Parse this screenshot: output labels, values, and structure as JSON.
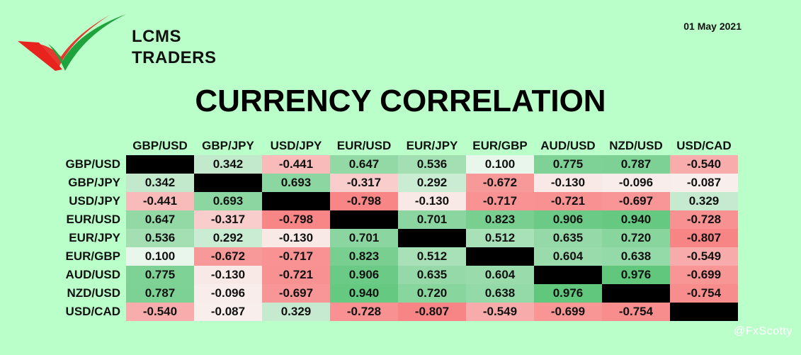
{
  "brand": {
    "line1": "LCMS",
    "line2": "TRADERS"
  },
  "date": "01 May 2021",
  "colors": {
    "background": "#baffc9",
    "positive": "#5cc67a",
    "negative": "#ff6b6b",
    "diagonal": "#000000"
  },
  "icons": [
    "lcms-swoosh-logo-icon"
  ],
  "watermark": {
    "symbol": "@",
    "handle": "FxScotty"
  },
  "chart_data": {
    "type": "heatmap",
    "title": "CURRENCY CORRELATION",
    "columns": [
      "GBP/USD",
      "GBP/JPY",
      "USD/JPY",
      "EUR/USD",
      "EUR/JPY",
      "EUR/GBP",
      "AUD/USD",
      "NZD/USD",
      "USD/CAD"
    ],
    "rows": [
      "GBP/USD",
      "GBP/JPY",
      "USD/JPY",
      "EUR/USD",
      "EUR/JPY",
      "EUR/GBP",
      "AUD/USD",
      "NZD/USD",
      "USD/CAD"
    ],
    "values": [
      [
        null,
        "0.342",
        "-0.441",
        "0.647",
        "0.536",
        "0.100",
        "0.775",
        "0.787",
        "-0.540"
      ],
      [
        "0.342",
        null,
        "0.693",
        "-0.317",
        "0.292",
        "-0.672",
        "-0.130",
        "-0.096",
        "-0.087"
      ],
      [
        "-0.441",
        "0.693",
        null,
        "-0.798",
        "-0.130",
        "-0.717",
        "-0.721",
        "-0.697",
        "0.329"
      ],
      [
        "0.647",
        "-0.317",
        "-0.798",
        null,
        "0.701",
        "0.823",
        "0.906",
        "0.940",
        "-0.728"
      ],
      [
        "0.536",
        "0.292",
        "-0.130",
        "0.701",
        null,
        "0.512",
        "0.635",
        "0.720",
        "-0.807"
      ],
      [
        "0.100",
        "-0.672",
        "-0.717",
        "0.823",
        "0.512",
        null,
        "0.604",
        "0.638",
        "-0.549"
      ],
      [
        "0.775",
        "-0.130",
        "-0.721",
        "0.906",
        "0.635",
        "0.604",
        null,
        "0.976",
        "-0.699"
      ],
      [
        "0.787",
        "-0.096",
        "-0.697",
        "0.940",
        "0.720",
        "0.638",
        "0.976",
        null,
        "-0.754"
      ],
      [
        "-0.540",
        "-0.087",
        "0.329",
        "-0.728",
        "-0.807",
        "-0.549",
        "-0.699",
        "-0.754",
        null
      ]
    ],
    "range": [
      -1,
      1
    ],
    "diagonal": "black"
  }
}
